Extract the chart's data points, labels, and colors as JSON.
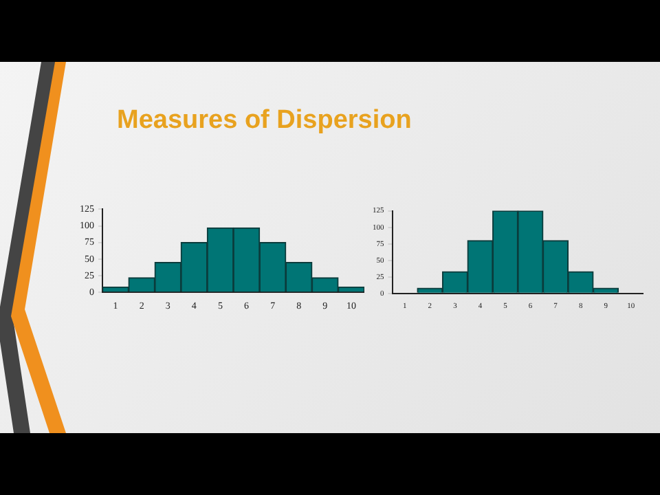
{
  "chart_data": [
    {
      "type": "bar",
      "title": "Measures of Dispersion",
      "categories": [
        "1",
        "2",
        "3",
        "4",
        "5",
        "6",
        "7",
        "8",
        "9",
        "10"
      ],
      "values": [
        8,
        22,
        45,
        75,
        97,
        97,
        75,
        45,
        22,
        8
      ],
      "color": "#007575",
      "ylim": [
        0,
        125
      ],
      "yticks": [
        0,
        25,
        50,
        75,
        100,
        125
      ],
      "grid": false
    },
    {
      "type": "bar",
      "categories": [
        "1",
        "2",
        "3",
        "4",
        "5",
        "6",
        "7",
        "8",
        "9",
        "10"
      ],
      "values": [
        0,
        8,
        33,
        80,
        125,
        125,
        80,
        33,
        8,
        0
      ],
      "color": "#007575",
      "ylim": [
        0,
        125
      ],
      "yticks": [
        0,
        25,
        50,
        75,
        100,
        125
      ],
      "grid": false
    }
  ]
}
